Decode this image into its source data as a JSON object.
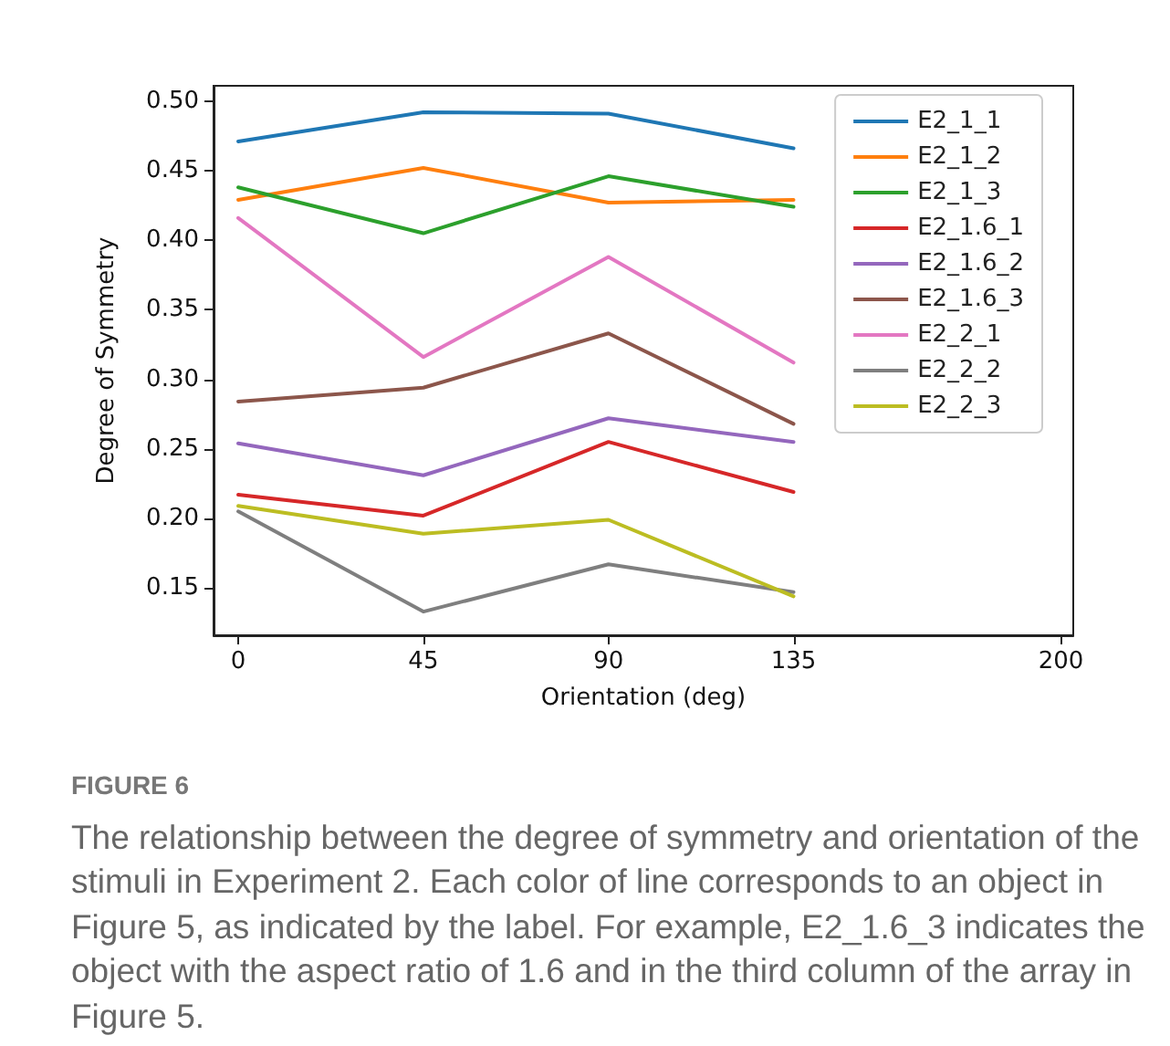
{
  "chart_data": {
    "type": "line",
    "xlabel": "Orientation (deg)",
    "ylabel": "Degree of Symmetry",
    "x": [
      0,
      45,
      90,
      135
    ],
    "xlim": [
      -6,
      203
    ],
    "xticks": [
      0,
      45,
      90,
      135,
      200
    ],
    "ylim": [
      0.116,
      0.511
    ],
    "yticks": [
      0.15,
      {
        "value": 0.2,
        "label": "0.20"
      },
      0.25,
      {
        "value": 0.3,
        "label": "0.30"
      },
      0.35,
      {
        "value": 0.4,
        "label": "0.40"
      },
      0.45,
      {
        "value": 0.5,
        "label": "0.50"
      }
    ],
    "grid": false,
    "legend": "top right",
    "marker": "none",
    "line_style": "solid",
    "series": [
      {
        "name": "E2_1_1",
        "color": "#1f77b4",
        "values": [
          0.471,
          0.492,
          0.491,
          0.466
        ]
      },
      {
        "name": "E2_1_2",
        "color": "#ff7f0e",
        "values": [
          0.429,
          0.452,
          0.427,
          0.429
        ]
      },
      {
        "name": "E2_1_3",
        "color": "#2ca02c",
        "values": [
          0.438,
          0.405,
          0.446,
          0.424
        ]
      },
      {
        "name": "E2_1.6_1",
        "color": "#d62728",
        "values": [
          0.217,
          0.202,
          0.255,
          0.219
        ]
      },
      {
        "name": "E2_1.6_2",
        "color": "#9467bd",
        "values": [
          0.254,
          0.231,
          0.272,
          0.255
        ]
      },
      {
        "name": "E2_1.6_3",
        "color": "#8c564b",
        "values": [
          0.284,
          0.294,
          0.333,
          0.268
        ]
      },
      {
        "name": "E2_2_1",
        "color": "#e377c2",
        "values": [
          0.416,
          0.316,
          0.388,
          0.312
        ]
      },
      {
        "name": "E2_2_2",
        "color": "#7f7f7f",
        "values": [
          0.205,
          0.133,
          0.167,
          0.147
        ]
      },
      {
        "name": "E2_2_3",
        "color": "#bcbd22",
        "values": [
          0.209,
          0.189,
          0.199,
          0.144
        ]
      }
    ],
    "annotations": [
      "FIGURE 6",
      "The relationship between the degree of symmetry and orientation of the stimuli in Experiment 2. Each color of line corresponds to an object in Figure 5, as indicated by the label. For example, E2_1.6_3 indicates the object with the aspect ratio of 1.6 and in the third column of the array in Figure 5."
    ]
  }
}
